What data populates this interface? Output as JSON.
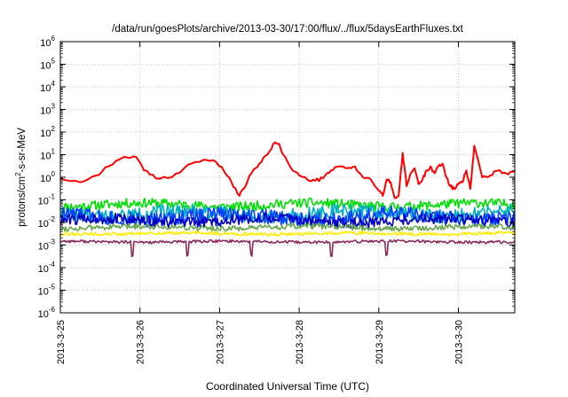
{
  "chart_data": {
    "type": "line",
    "title": "/data/run/goesPlots/archive/2013-03-30/17:00/flux/../flux/5daysEarthFluxes.txt",
    "xlabel": "Coordinated Universal Time (UTC)",
    "ylabel": {
      "prefix": "protons/cm",
      "sup": "2",
      "suffix": "-s-sr-MeV"
    },
    "y_scale": "log",
    "ylim_exponents": [
      -6,
      6
    ],
    "y_tick_base": "10",
    "y_tick_exponents": [
      "-6",
      "-5",
      "-4",
      "-3",
      "-2",
      "-1",
      "0",
      "1",
      "2",
      "3",
      "4",
      "5",
      "6"
    ],
    "x_range_days": [
      "2013-3-25 00:00",
      "2013-3-30 17:00"
    ],
    "x_ticks": [
      "2013-3-25",
      "2013-3-26",
      "2013-3-27",
      "2013-3-28",
      "2013-3-29",
      "2013-3-30"
    ],
    "grid": true,
    "series": [
      {
        "color": "#ff0000",
        "style": "smooth",
        "x": [
          0,
          0.25,
          0.45,
          0.6,
          0.8,
          0.95,
          1.05,
          1.2,
          1.4,
          1.6,
          1.8,
          1.95,
          2.05,
          2.15,
          2.25,
          2.3,
          2.4,
          2.5,
          2.6,
          2.7,
          2.75,
          2.8,
          2.9,
          3.0,
          3.1,
          3.2,
          3.3,
          3.4,
          3.5,
          3.6,
          3.7,
          3.8,
          3.9,
          4.0,
          4.05,
          4.1,
          4.15,
          4.2,
          4.25,
          4.3,
          4.35,
          4.4,
          4.45,
          4.5,
          4.55,
          4.6,
          4.65,
          4.7,
          4.75,
          4.8,
          4.85,
          4.9,
          4.95,
          5.0,
          5.05,
          5.1,
          5.15,
          5.2,
          5.3,
          5.4,
          5.5,
          5.6,
          5.708
        ],
        "y": [
          0.9,
          0.6,
          1.2,
          3.0,
          8.0,
          8.0,
          2.0,
          0.9,
          1.0,
          3.5,
          6.0,
          5.0,
          2.0,
          0.6,
          0.15,
          0.3,
          1.5,
          4.0,
          10,
          35,
          30,
          10,
          2.5,
          1.2,
          0.8,
          0.7,
          0.9,
          2.0,
          3.0,
          2.5,
          3.0,
          1.0,
          0.8,
          0.25,
          0.15,
          0.8,
          0.6,
          0.12,
          0.15,
          12,
          0.4,
          1.5,
          2.5,
          0.5,
          0.8,
          2.0,
          3.0,
          1.5,
          3.0,
          4.0,
          1.0,
          0.4,
          0.3,
          0.5,
          0.6,
          2.0,
          0.3,
          25,
          1.0,
          1.2,
          2.0,
          1.5,
          1.8
        ]
      },
      {
        "color": "#00e000",
        "style": "noisy",
        "level": 0.06,
        "spread": 0.35,
        "seed": 11
      },
      {
        "color": "#00b0c0",
        "style": "noisy",
        "level": 0.025,
        "spread": 0.5,
        "seed": 22
      },
      {
        "color": "#0040ff",
        "style": "noisy",
        "level": 0.018,
        "spread": 0.55,
        "seed": 33
      },
      {
        "color": "#0000c0",
        "style": "noisy",
        "level": 0.012,
        "spread": 0.4,
        "seed": 44
      },
      {
        "color": "#6aa84f",
        "style": "noisy",
        "level": 0.006,
        "spread": 0.2,
        "seed": 55
      },
      {
        "color": "#ffee00",
        "style": "noisy",
        "level": 0.0032,
        "spread": 0.12,
        "seed": 66
      },
      {
        "color": "#8b2a5a",
        "style": "noisy",
        "level": 0.0014,
        "spread": 0.1,
        "seed": 77,
        "dips": [
          0.9,
          1.6,
          2.4,
          3.4,
          4.1
        ]
      }
    ]
  }
}
